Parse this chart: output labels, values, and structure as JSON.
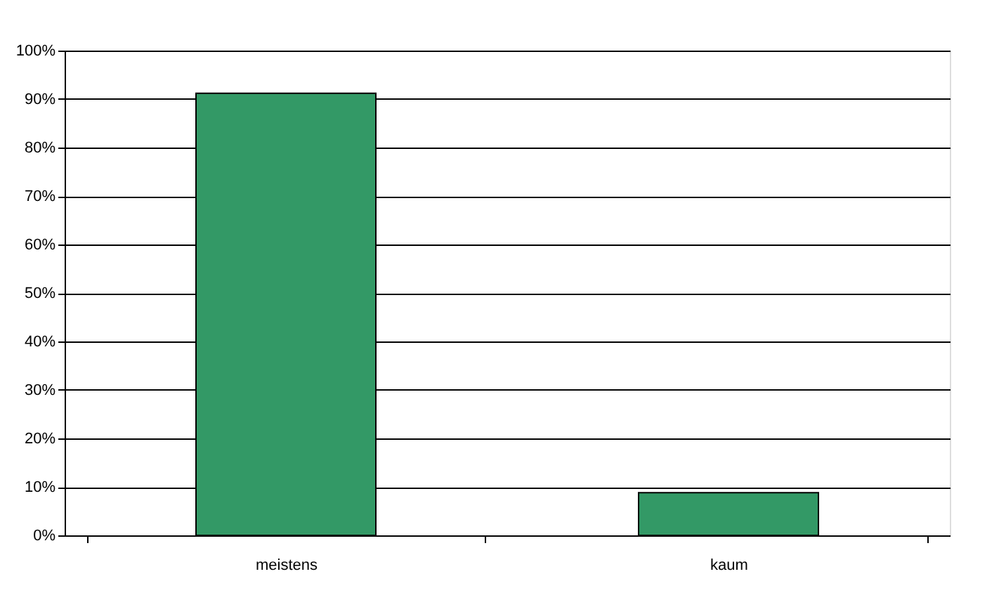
{
  "chart_data": {
    "type": "bar",
    "categories": [
      "meistens",
      "kaum"
    ],
    "values": [
      91.2,
      8.8
    ],
    "color": "#339966",
    "ylim": [
      0,
      100
    ],
    "yticks": [
      {
        "value": 0,
        "label": "0%"
      },
      {
        "value": 10,
        "label": "10%"
      },
      {
        "value": 20,
        "label": "20%"
      },
      {
        "value": 30,
        "label": "30%"
      },
      {
        "value": 40,
        "label": "40%"
      },
      {
        "value": 50,
        "label": "50%"
      },
      {
        "value": 60,
        "label": "60%"
      },
      {
        "value": 70,
        "label": "70%"
      },
      {
        "value": 80,
        "label": "80%"
      },
      {
        "value": 90,
        "label": "90%"
      },
      {
        "value": 100,
        "label": "100%"
      }
    ],
    "grid": "y",
    "legend": false
  }
}
